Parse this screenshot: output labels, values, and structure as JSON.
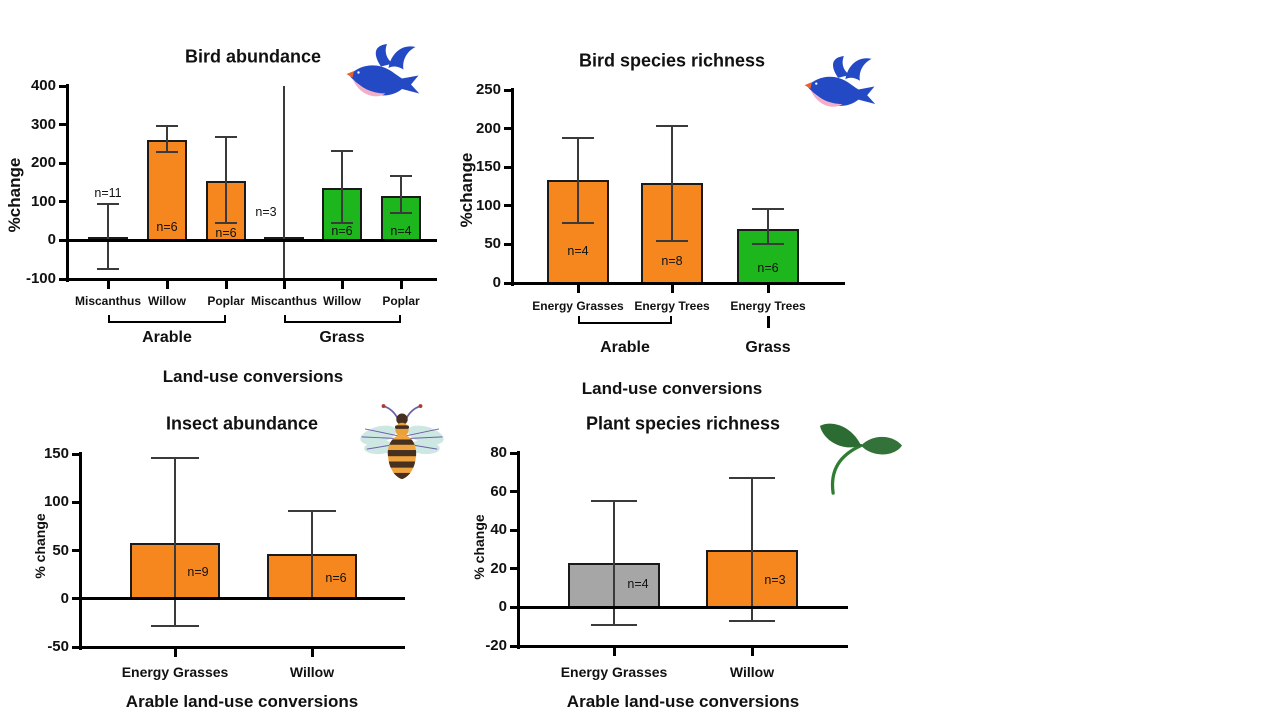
{
  "figure": {
    "background": "#ffffff"
  },
  "colors": {
    "orange": "#F6871F",
    "green": "#1DB71D",
    "gray_light": "#C8C8C8",
    "gray_medium": "#A6A6A6",
    "axis": "#000000",
    "error_bar": "#3A3A3A",
    "bar_border": "#1A1A1A",
    "text": "#111111",
    "bird_blue": "#2449C4",
    "bird_pink": "#F2AFC6",
    "bird_beak": "#E8622C",
    "bee_body": "#F0A440",
    "bee_dark": "#46301F",
    "bee_wing": "#CDE7E2",
    "bee_vein": "#6B5FA8",
    "bee_tip": "#B03A2E",
    "plant_leaf": "#2C6B31",
    "plant_leaf2": "#337239",
    "plant_stem": "#2F7D33"
  },
  "chart_data": [
    {
      "id": "bird-abundance",
      "type": "bar",
      "title": "Bird abundance",
      "ylabel": "%change",
      "xlabel": "Land-use conversions",
      "icon": "bird",
      "ylim": [
        -100,
        400
      ],
      "yticks": [
        400,
        300,
        200,
        100,
        0,
        -100
      ],
      "categories": [
        "Miscanthus",
        "Willow",
        "Poplar",
        "Miscanthus",
        "Willow",
        "Poplar"
      ],
      "values": [
        8,
        260,
        155,
        8,
        135,
        116
      ],
      "error_low": [
        -75,
        228,
        46,
        -100,
        44,
        70
      ],
      "error_high": [
        95,
        297,
        268,
        400,
        232,
        168
      ],
      "error_clipped": [
        false,
        false,
        false,
        true,
        false,
        false
      ],
      "bar_colors": [
        "gray_light",
        "orange",
        "orange",
        "gray_light",
        "green",
        "green"
      ],
      "n_labels": [
        "n=11",
        "n=6",
        "n=6",
        "n=3",
        "n=6",
        "n=4"
      ],
      "groups": [
        {
          "label": "Arable",
          "from": 0,
          "to": 2
        },
        {
          "label": "Grass",
          "from": 3,
          "to": 5
        }
      ]
    },
    {
      "id": "bird-species-richness",
      "type": "bar",
      "title": "Bird species richness",
      "ylabel": "%change",
      "xlabel": "Land-use conversions",
      "icon": "bird",
      "ylim": [
        0,
        250
      ],
      "yticks": [
        250,
        200,
        150,
        100,
        50,
        0
      ],
      "categories": [
        "Energy Grasses",
        "Energy Trees",
        "Energy Trees"
      ],
      "values": [
        133,
        129,
        70
      ],
      "error_low": [
        78,
        54,
        50
      ],
      "error_high": [
        188,
        204,
        96
      ],
      "error_clipped": [
        false,
        false,
        false
      ],
      "bar_colors": [
        "orange",
        "orange",
        "green"
      ],
      "n_labels": [
        "n=4",
        "n=8",
        "n=6"
      ],
      "groups": [
        {
          "label": "Arable",
          "from": 0,
          "to": 1
        },
        {
          "label": "Grass",
          "from": 2,
          "to": 2
        }
      ]
    },
    {
      "id": "insect-abundance",
      "type": "bar",
      "title": "Insect abundance",
      "ylabel": "% change",
      "xlabel": "Arable land-use conversions",
      "icon": "bee",
      "ylim": [
        -50,
        150
      ],
      "yticks": [
        150,
        100,
        50,
        0,
        -50
      ],
      "categories": [
        "Energy Grasses",
        "Willow"
      ],
      "values": [
        58,
        46
      ],
      "error_low": [
        -28,
        0
      ],
      "error_high": [
        146,
        91
      ],
      "error_caps_low": [
        true,
        false
      ],
      "error_clipped": [
        false,
        false
      ],
      "bar_colors": [
        "orange",
        "orange"
      ],
      "n_labels": [
        "n=9",
        "n=6"
      ],
      "groups": []
    },
    {
      "id": "plant-species-richness",
      "type": "bar",
      "title": "Plant species richness",
      "ylabel": "% change",
      "xlabel": "Arable land-use conversions",
      "icon": "plant",
      "ylim": [
        -20,
        80
      ],
      "yticks": [
        80,
        60,
        40,
        20,
        0,
        -20
      ],
      "categories": [
        "Energy Grasses",
        "Willow"
      ],
      "values": [
        23,
        30
      ],
      "error_low": [
        -9,
        -7
      ],
      "error_high": [
        55,
        67
      ],
      "error_clipped": [
        false,
        false
      ],
      "bar_colors": [
        "gray_medium",
        "orange"
      ],
      "n_labels": [
        "n=4",
        "n=3"
      ],
      "groups": []
    }
  ]
}
